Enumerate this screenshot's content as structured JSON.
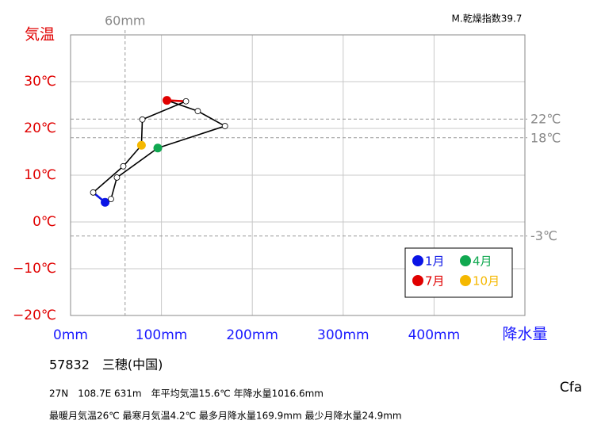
{
  "chart_data": {
    "type": "climograph",
    "dryness_index": "M.乾燥指数39.7",
    "ylabel": "気温",
    "xlabel": "降水量",
    "station": "57832　三穂(中国)",
    "info_line1": "27N　108.7E 631m　年平均気温15.6℃ 年降水量1016.6mm",
    "info_line2": "最暖月気温26℃ 最寒月気温4.2℃ 最多月降水量169.9mm 最少月降水量24.9mm",
    "climate_class": "Cfa",
    "x": [
      38,
      44.5,
      51,
      96,
      169.9,
      140,
      106,
      127,
      79,
      78,
      58,
      24.9
    ],
    "values": [
      4.2,
      4.9,
      9.5,
      15.8,
      20.5,
      23.7,
      26,
      25.8,
      21.9,
      16.4,
      11.9,
      6.3
    ],
    "point_colors": [
      "#0a14e6",
      "#ffffff",
      "#ffffff",
      "#10a850",
      "#ffffff",
      "#ffffff",
      "#e00000",
      "#ffffff",
      "#ffffff",
      "#f5b800",
      "#ffffff",
      "#ffffff"
    ],
    "xlim": [
      0,
      500
    ],
    "ylim": [
      -20,
      40
    ],
    "xticks": [
      {
        "value": 0,
        "label": "0mm"
      },
      {
        "value": 100,
        "label": "100mm"
      },
      {
        "value": 200,
        "label": "200mm"
      },
      {
        "value": 300,
        "label": "300mm"
      },
      {
        "value": 400,
        "label": "400mm"
      }
    ],
    "yticks": [
      {
        "value": -20,
        "label": "−20℃"
      },
      {
        "value": -10,
        "label": "−10℃"
      },
      {
        "value": 0,
        "label": "0℃"
      },
      {
        "value": 10,
        "label": "10℃"
      },
      {
        "value": 20,
        "label": "20℃"
      },
      {
        "value": 30,
        "label": "30℃"
      }
    ],
    "ref_x": [
      {
        "value": 60,
        "label": "60mm"
      }
    ],
    "ref_y": [
      {
        "value": 22,
        "label": "22℃"
      },
      {
        "value": 18,
        "label": "18℃"
      },
      {
        "value": -3,
        "label": "-3℃"
      }
    ],
    "legend": [
      {
        "label": "1月",
        "color": "#0a14e6"
      },
      {
        "label": "4月",
        "color": "#10a850"
      },
      {
        "label": "7月",
        "color": "#e00000"
      },
      {
        "label": "10月",
        "color": "#f5b800"
      }
    ],
    "grid": true
  }
}
